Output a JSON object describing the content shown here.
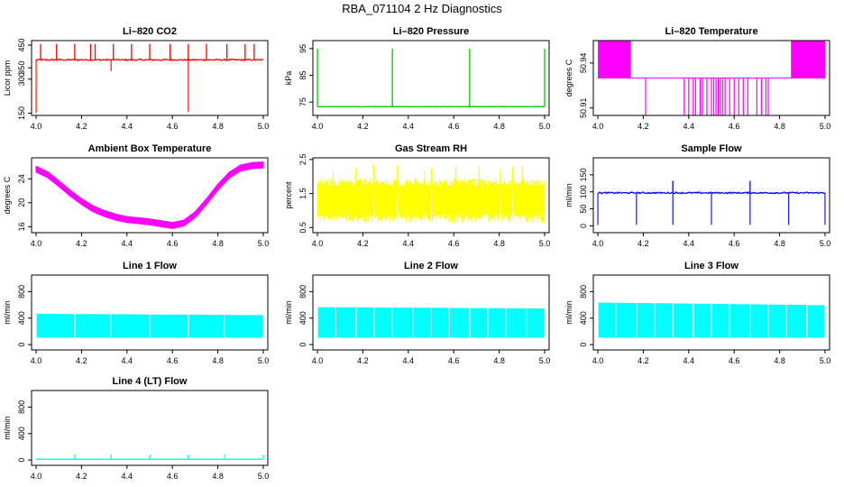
{
  "title": "RBA_071104  2 Hz Diagnostics",
  "colors": {
    "red": "#ff0000",
    "green": "#00cc00",
    "magenta": "#ff00ff",
    "yellow": "#ffff00",
    "blue": "#0000ff",
    "cyan": "#00ffff",
    "axis": "#000000"
  },
  "chart_data": [
    {
      "id": "co2",
      "type": "line",
      "title": "Li–820 CO2",
      "ylabel": "Licor ppm",
      "color": "red",
      "xlim": [
        3.98,
        5.02
      ],
      "ylim": [
        140,
        470
      ],
      "xticks": [
        "4.0",
        "4.2",
        "4.4",
        "4.6",
        "4.8",
        "5.0"
      ],
      "xtickvals": [
        4.0,
        4.2,
        4.4,
        4.6,
        4.8,
        5.0
      ],
      "yticks": [
        "150",
        "300",
        "350",
        "450"
      ],
      "ytickvals": [
        150,
        300,
        350,
        450
      ],
      "series": [
        {
          "kind": "baseline_spikes",
          "base": 385,
          "noise": 6,
          "spikes_up": [
            4.02,
            4.09,
            4.17,
            4.24,
            4.26,
            4.34,
            4.42,
            4.5,
            4.59,
            4.67,
            4.75,
            4.84,
            4.92,
            4.96
          ],
          "spike_up_to": 455,
          "spikes_down": [
            [
              4.0,
              150
            ],
            [
              4.33,
              335
            ],
            [
              4.67,
              155
            ]
          ]
        }
      ]
    },
    {
      "id": "pressure",
      "type": "line",
      "title": "Li–820 Pressure",
      "ylabel": "kPa",
      "color": "green",
      "xlim": [
        3.98,
        5.02
      ],
      "ylim": [
        70,
        98
      ],
      "xticks": [
        "4.0",
        "4.2",
        "4.4",
        "4.6",
        "4.8",
        "5.0"
      ],
      "xtickvals": [
        4.0,
        4.2,
        4.4,
        4.6,
        4.8,
        5.0
      ],
      "yticks": [
        "75",
        "85",
        "95"
      ],
      "ytickvals": [
        75,
        85,
        95
      ],
      "series": [
        {
          "kind": "baseline_spikes",
          "base": 73.3,
          "noise": 0.15,
          "spikes_up": [
            4.0,
            4.33,
            4.67,
            5.0
          ],
          "spike_up_to": 95,
          "spikes_down": []
        }
      ]
    },
    {
      "id": "temperature",
      "type": "line",
      "title": "Li–820 Temperature",
      "ylabel": "degrees C",
      "color": "magenta",
      "xlim": [
        3.98,
        5.02
      ],
      "ylim": [
        50.905,
        50.955
      ],
      "xticks": [
        "4.0",
        "4.2",
        "4.4",
        "4.6",
        "4.8",
        "5.0"
      ],
      "xtickvals": [
        4.0,
        4.2,
        4.4,
        4.6,
        4.8,
        5.0
      ],
      "yticks": [
        "50.91",
        "50.94"
      ],
      "ytickvals": [
        50.91,
        50.94
      ],
      "series": [
        {
          "kind": "quantized",
          "high": 50.955,
          "mid": 50.93,
          "low": 50.905,
          "dense_ranges": [
            [
              4.0,
              4.145
            ],
            [
              4.85,
              5.0
            ]
          ],
          "dips": [
            4.21,
            4.38,
            4.4,
            4.42,
            4.43,
            4.45,
            4.46,
            4.48,
            4.5,
            4.51,
            4.52,
            4.53,
            4.54,
            4.55,
            4.56,
            4.58,
            4.6,
            4.62,
            4.64,
            4.66,
            4.7,
            4.72,
            4.74,
            4.75
          ]
        }
      ]
    },
    {
      "id": "box-temp",
      "type": "line",
      "title": "Ambient Box Temperature",
      "ylabel": "degrees C",
      "color": "magenta",
      "xlim": [
        3.98,
        5.02
      ],
      "ylim": [
        15,
        27.5
      ],
      "xticks": [
        "4.0",
        "4.2",
        "4.4",
        "4.6",
        "4.8",
        "5.0"
      ],
      "xtickvals": [
        4.0,
        4.2,
        4.4,
        4.6,
        4.8,
        5.0
      ],
      "yticks": [
        "16",
        "20",
        "24"
      ],
      "ytickvals": [
        16,
        20,
        24
      ],
      "series": [
        {
          "kind": "band_curve",
          "half_width": 0.5,
          "points": [
            [
              4.0,
              25.6
            ],
            [
              4.05,
              24.7
            ],
            [
              4.1,
              23.2
            ],
            [
              4.15,
              21.6
            ],
            [
              4.2,
              20.2
            ],
            [
              4.25,
              19.0
            ],
            [
              4.3,
              18.2
            ],
            [
              4.35,
              17.6
            ],
            [
              4.4,
              17.2
            ],
            [
              4.45,
              17.0
            ],
            [
              4.5,
              16.8
            ],
            [
              4.55,
              16.5
            ],
            [
              4.6,
              16.2
            ],
            [
              4.65,
              16.6
            ],
            [
              4.7,
              18.0
            ],
            [
              4.75,
              20.2
            ],
            [
              4.8,
              22.6
            ],
            [
              4.85,
              24.6
            ],
            [
              4.9,
              25.8
            ],
            [
              4.95,
              26.2
            ],
            [
              5.0,
              26.3
            ]
          ]
        }
      ]
    },
    {
      "id": "rh",
      "type": "line",
      "title": "Gas Stream RH",
      "ylabel": "percent",
      "color": "yellow",
      "xlim": [
        3.98,
        5.02
      ],
      "ylim": [
        0.35,
        2.55
      ],
      "xticks": [
        "4.0",
        "4.2",
        "4.4",
        "4.6",
        "4.8",
        "5.0"
      ],
      "xtickvals": [
        4.0,
        4.2,
        4.4,
        4.6,
        4.8,
        5.0
      ],
      "yticks": [
        "0.5",
        "1.5",
        "2.5"
      ],
      "ytickvals": [
        0.5,
        1.5,
        2.5
      ],
      "series": [
        {
          "kind": "noise_band",
          "low": 0.65,
          "high": 1.95,
          "max": 2.35
        }
      ]
    },
    {
      "id": "sample-flow",
      "type": "line",
      "title": "Sample Flow",
      "ylabel": "ml/min",
      "color": "blue",
      "xlim": [
        3.98,
        5.02
      ],
      "ylim": [
        -20,
        200
      ],
      "xticks": [
        "4.0",
        "4.2",
        "4.4",
        "4.6",
        "4.8",
        "5.0"
      ],
      "xtickvals": [
        4.0,
        4.2,
        4.4,
        4.6,
        4.8,
        5.0
      ],
      "yticks": [
        "0",
        "50",
        "100",
        "150"
      ],
      "ytickvals": [
        0,
        50,
        100,
        150
      ],
      "series": [
        {
          "kind": "baseline_spikes",
          "base": 97,
          "noise": 4,
          "spikes_up": [
            4.33,
            4.67
          ],
          "spike_up_to": 132,
          "spikes_down": [
            [
              4.0,
              3
            ],
            [
              4.17,
              3
            ],
            [
              4.33,
              3
            ],
            [
              4.5,
              3
            ],
            [
              4.67,
              3
            ],
            [
              4.84,
              3
            ],
            [
              5.0,
              3
            ]
          ]
        }
      ]
    },
    {
      "id": "line1",
      "type": "line",
      "title": "Line 1 Flow",
      "ylabel": "ml/min",
      "color": "cyan",
      "xlim": [
        3.98,
        5.02
      ],
      "ylim": [
        -80,
        1050
      ],
      "xticks": [
        "4.0",
        "4.2",
        "4.4",
        "4.6",
        "4.8",
        "5.0"
      ],
      "xtickvals": [
        4.0,
        4.2,
        4.4,
        4.6,
        4.8,
        5.0
      ],
      "yticks": [
        "0",
        "400",
        "800"
      ],
      "ytickvals": [
        0,
        400,
        800
      ],
      "series": [
        {
          "kind": "block_band",
          "low": 110,
          "high_start": 460,
          "high_end": 440,
          "gaps": [
            4.17,
            4.33,
            4.5,
            4.67,
            4.83
          ]
        }
      ]
    },
    {
      "id": "line2",
      "type": "line",
      "title": "Line 2 Flow",
      "ylabel": "ml/min",
      "color": "cyan",
      "xlim": [
        3.98,
        5.02
      ],
      "ylim": [
        -80,
        1050
      ],
      "xticks": [
        "4.0",
        "4.2",
        "4.4",
        "4.6",
        "4.8",
        "5.0"
      ],
      "xtickvals": [
        4.0,
        4.2,
        4.4,
        4.6,
        4.8,
        5.0
      ],
      "yticks": [
        "0",
        "400",
        "800"
      ],
      "ytickvals": [
        0,
        400,
        800
      ],
      "series": [
        {
          "kind": "block_band",
          "low": 110,
          "high_start": 560,
          "high_end": 540,
          "gaps": [
            4.08,
            4.17,
            4.25,
            4.33,
            4.42,
            4.5,
            4.58,
            4.67,
            4.75,
            4.83,
            4.92
          ]
        }
      ]
    },
    {
      "id": "line3",
      "type": "line",
      "title": "Line 3 Flow",
      "ylabel": "ml/min",
      "color": "cyan",
      "xlim": [
        3.98,
        5.02
      ],
      "ylim": [
        -80,
        1050
      ],
      "xticks": [
        "4.0",
        "4.2",
        "4.4",
        "4.6",
        "4.8",
        "5.0"
      ],
      "xtickvals": [
        4.0,
        4.2,
        4.4,
        4.6,
        4.8,
        5.0
      ],
      "yticks": [
        "0",
        "400",
        "800"
      ],
      "ytickvals": [
        0,
        400,
        800
      ],
      "series": [
        {
          "kind": "block_band",
          "low": 110,
          "high_start": 630,
          "high_end": 590,
          "gaps": [
            4.08,
            4.17,
            4.25,
            4.33,
            4.42,
            4.5,
            4.58,
            4.67,
            4.75,
            4.83,
            4.92
          ]
        }
      ]
    },
    {
      "id": "line4",
      "type": "line",
      "title": "Line 4 (LT) Flow",
      "ylabel": "ml/min",
      "color": "cyan",
      "xlim": [
        3.98,
        5.02
      ],
      "ylim": [
        -80,
        1050
      ],
      "xticks": [
        "4.0",
        "4.2",
        "4.4",
        "4.6",
        "4.8",
        "5.0"
      ],
      "xtickvals": [
        4.0,
        4.2,
        4.4,
        4.6,
        4.8,
        5.0
      ],
      "yticks": [
        "0",
        "400",
        "800"
      ],
      "ytickvals": [
        0,
        400,
        800
      ],
      "series": [
        {
          "kind": "baseline_spikes",
          "base": 12,
          "noise": 3,
          "spikes_up": [
            4.17,
            4.33,
            4.5,
            4.67,
            4.83,
            5.0
          ],
          "spike_up_to": 80,
          "spikes_down": []
        }
      ]
    }
  ]
}
